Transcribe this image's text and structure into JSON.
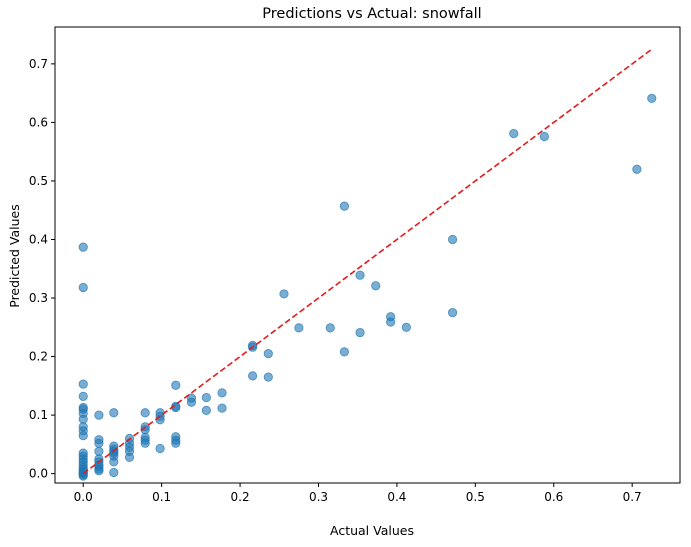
{
  "chart_data": {
    "type": "scatter",
    "title": "Predictions vs Actual: snowfall",
    "xlabel": "Actual Values",
    "ylabel": "Predicted Values",
    "xlim": [
      -0.036,
      0.761
    ],
    "ylim": [
      -0.016,
      0.763
    ],
    "xticks": [
      0.0,
      0.1,
      0.2,
      0.3,
      0.4,
      0.5,
      0.6,
      0.7
    ],
    "xtick_labels": [
      "0.0",
      "0.1",
      "0.2",
      "0.3",
      "0.4",
      "0.5",
      "0.6",
      "0.7"
    ],
    "yticks": [
      0.0,
      0.1,
      0.2,
      0.3,
      0.4,
      0.5,
      0.6,
      0.7
    ],
    "ytick_labels": [
      "0.0",
      "0.1",
      "0.2",
      "0.3",
      "0.4",
      "0.5",
      "0.6",
      "0.7"
    ],
    "grid": false,
    "point_color": "#1f77b4",
    "point_alpha": 0.6,
    "reference_line": {
      "style": "dashed",
      "color": "#e41a1c",
      "from": [
        0.0,
        0.0
      ],
      "to": [
        0.725,
        0.725
      ]
    },
    "points": [
      [
        0.0,
        0.387
      ],
      [
        0.0,
        0.318
      ],
      [
        0.0,
        0.153
      ],
      [
        0.0,
        0.132
      ],
      [
        0.0,
        0.113
      ],
      [
        0.0,
        0.11
      ],
      [
        0.0,
        0.103
      ],
      [
        0.0,
        0.093
      ],
      [
        0.0,
        0.08
      ],
      [
        0.0,
        0.073
      ],
      [
        0.0,
        0.065
      ],
      [
        0.0,
        0.035
      ],
      [
        0.0,
        0.03
      ],
      [
        0.0,
        0.025
      ],
      [
        0.0,
        0.02
      ],
      [
        0.0,
        0.015
      ],
      [
        0.0,
        0.01
      ],
      [
        0.0,
        0.007
      ],
      [
        0.0,
        0.004
      ],
      [
        0.0,
        0.002
      ],
      [
        0.0,
        0.0
      ],
      [
        0.0,
        -0.002
      ],
      [
        0.0,
        -0.004
      ],
      [
        0.02,
        0.1
      ],
      [
        0.02,
        0.058
      ],
      [
        0.02,
        0.052
      ],
      [
        0.02,
        0.038
      ],
      [
        0.02,
        0.025
      ],
      [
        0.02,
        0.02
      ],
      [
        0.02,
        0.015
      ],
      [
        0.02,
        0.012
      ],
      [
        0.02,
        0.008
      ],
      [
        0.02,
        0.005
      ],
      [
        0.039,
        0.104
      ],
      [
        0.039,
        0.047
      ],
      [
        0.039,
        0.042
      ],
      [
        0.039,
        0.038
      ],
      [
        0.039,
        0.035
      ],
      [
        0.039,
        0.03
      ],
      [
        0.039,
        0.02
      ],
      [
        0.039,
        0.002
      ],
      [
        0.059,
        0.06
      ],
      [
        0.059,
        0.052
      ],
      [
        0.059,
        0.045
      ],
      [
        0.059,
        0.038
      ],
      [
        0.059,
        0.028
      ],
      [
        0.079,
        0.104
      ],
      [
        0.079,
        0.08
      ],
      [
        0.079,
        0.075
      ],
      [
        0.079,
        0.062
      ],
      [
        0.079,
        0.057
      ],
      [
        0.079,
        0.052
      ],
      [
        0.098,
        0.104
      ],
      [
        0.098,
        0.098
      ],
      [
        0.098,
        0.092
      ],
      [
        0.098,
        0.043
      ],
      [
        0.118,
        0.151
      ],
      [
        0.118,
        0.115
      ],
      [
        0.118,
        0.113
      ],
      [
        0.118,
        0.063
      ],
      [
        0.118,
        0.057
      ],
      [
        0.118,
        0.052
      ],
      [
        0.138,
        0.129
      ],
      [
        0.138,
        0.122
      ],
      [
        0.157,
        0.13
      ],
      [
        0.157,
        0.108
      ],
      [
        0.177,
        0.138
      ],
      [
        0.177,
        0.112
      ],
      [
        0.216,
        0.219
      ],
      [
        0.216,
        0.216
      ],
      [
        0.216,
        0.167
      ],
      [
        0.236,
        0.205
      ],
      [
        0.236,
        0.165
      ],
      [
        0.256,
        0.307
      ],
      [
        0.275,
        0.249
      ],
      [
        0.315,
        0.249
      ],
      [
        0.333,
        0.457
      ],
      [
        0.333,
        0.208
      ],
      [
        0.353,
        0.339
      ],
      [
        0.353,
        0.241
      ],
      [
        0.373,
        0.321
      ],
      [
        0.392,
        0.268
      ],
      [
        0.392,
        0.259
      ],
      [
        0.412,
        0.25
      ],
      [
        0.471,
        0.4
      ],
      [
        0.471,
        0.275
      ],
      [
        0.549,
        0.581
      ],
      [
        0.588,
        0.576
      ],
      [
        0.706,
        0.52
      ],
      [
        0.725,
        0.641
      ]
    ]
  }
}
